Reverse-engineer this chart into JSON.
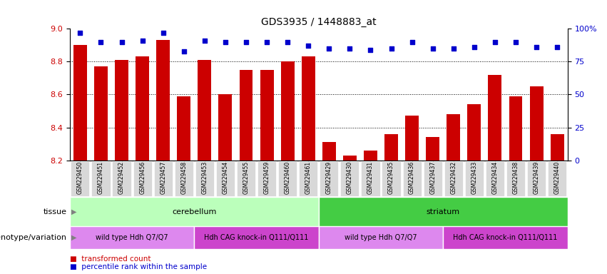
{
  "title": "GDS3935 / 1448883_at",
  "samples": [
    "GSM229450",
    "GSM229451",
    "GSM229452",
    "GSM229456",
    "GSM229457",
    "GSM229458",
    "GSM229453",
    "GSM229454",
    "GSM229455",
    "GSM229459",
    "GSM229460",
    "GSM229461",
    "GSM229429",
    "GSM229430",
    "GSM229431",
    "GSM229435",
    "GSM229436",
    "GSM229437",
    "GSM229432",
    "GSM229433",
    "GSM229434",
    "GSM229438",
    "GSM229439",
    "GSM229440"
  ],
  "bar_values": [
    8.9,
    8.77,
    8.81,
    8.83,
    8.93,
    8.59,
    8.81,
    8.6,
    8.75,
    8.75,
    8.8,
    8.83,
    8.31,
    8.23,
    8.26,
    8.36,
    8.47,
    8.34,
    8.48,
    8.54,
    8.72,
    8.59,
    8.65,
    8.36
  ],
  "percentile_values": [
    97,
    90,
    90,
    91,
    97,
    83,
    91,
    90,
    90,
    90,
    90,
    87,
    85,
    85,
    84,
    85,
    90,
    85,
    85,
    86,
    90,
    90,
    86,
    86
  ],
  "ymin": 8.2,
  "ymax": 9.0,
  "bar_color": "#cc0000",
  "percentile_color": "#0000cc",
  "yticks_left": [
    8.2,
    8.4,
    8.6,
    8.8,
    9.0
  ],
  "yticks_right": [
    0,
    25,
    50,
    75,
    100
  ],
  "tissue_groups": [
    {
      "label": "cerebellum",
      "start": 0,
      "end": 11,
      "color": "#bbffbb"
    },
    {
      "label": "striatum",
      "start": 12,
      "end": 23,
      "color": "#44cc44"
    }
  ],
  "genotype_groups": [
    {
      "label": "wild type Hdh Q7/Q7",
      "start": 0,
      "end": 5,
      "color": "#dd88ee"
    },
    {
      "label": "Hdh CAG knock-in Q111/Q111",
      "start": 6,
      "end": 11,
      "color": "#cc44cc"
    },
    {
      "label": "wild type Hdh Q7/Q7",
      "start": 12,
      "end": 17,
      "color": "#dd88ee"
    },
    {
      "label": "Hdh CAG knock-in Q111/Q111",
      "start": 18,
      "end": 23,
      "color": "#cc44cc"
    }
  ],
  "xtick_bg_color": "#cccccc",
  "legend_items": [
    {
      "label": "transformed count",
      "color": "#cc0000"
    },
    {
      "label": "percentile rank within the sample",
      "color": "#0000cc"
    }
  ]
}
